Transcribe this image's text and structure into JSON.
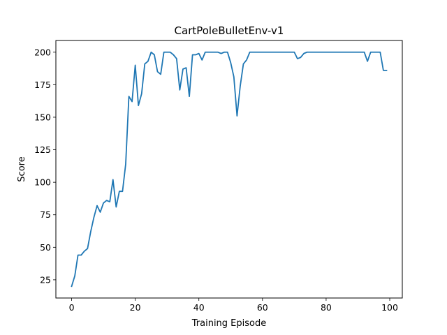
{
  "chart_data": {
    "type": "line",
    "title": "CartPoleBulletEnv-v1",
    "xlabel": "Training Episode",
    "ylabel": "Score",
    "xlim": [
      -4.95,
      103.95
    ],
    "ylim": [
      11,
      209
    ],
    "xticks": [
      0,
      20,
      40,
      60,
      80,
      100
    ],
    "yticks": [
      25,
      50,
      75,
      100,
      125,
      150,
      175,
      200
    ],
    "grid": false,
    "legend": "none",
    "series": [
      {
        "color": "#1f77b4",
        "x": [
          0,
          1,
          2,
          3,
          4,
          5,
          6,
          7,
          8,
          9,
          10,
          11,
          12,
          13,
          14,
          15,
          16,
          17,
          18,
          19,
          20,
          21,
          22,
          23,
          24,
          25,
          26,
          27,
          28,
          29,
          30,
          31,
          32,
          33,
          34,
          35,
          36,
          37,
          38,
          39,
          40,
          41,
          42,
          43,
          44,
          45,
          46,
          47,
          48,
          49,
          50,
          51,
          52,
          53,
          54,
          55,
          56,
          57,
          58,
          59,
          60,
          61,
          62,
          63,
          64,
          65,
          66,
          67,
          68,
          69,
          70,
          71,
          72,
          73,
          74,
          75,
          76,
          77,
          78,
          79,
          80,
          81,
          82,
          83,
          84,
          85,
          86,
          87,
          88,
          89,
          90,
          91,
          92,
          93,
          94,
          95,
          96,
          97,
          98,
          99
        ],
        "values": [
          20,
          28,
          44,
          44,
          47,
          49,
          62,
          73,
          82,
          77,
          84,
          86,
          85,
          102,
          81,
          93,
          93,
          114,
          166,
          162,
          190,
          159,
          168,
          191,
          193,
          200,
          198,
          185,
          183,
          200,
          200,
          200,
          198,
          195,
          171,
          187,
          188,
          166,
          198,
          198,
          199,
          194,
          200,
          200,
          200,
          200,
          200,
          199,
          200,
          200,
          192,
          181,
          151,
          174,
          191,
          194,
          200,
          200,
          200,
          200,
          200,
          200,
          200,
          200,
          200,
          200,
          200,
          200,
          200,
          200,
          200,
          195,
          196,
          199,
          200,
          200,
          200,
          200,
          200,
          200,
          200,
          200,
          200,
          200,
          200,
          200,
          200,
          200,
          200,
          200,
          200,
          200,
          200,
          193,
          200,
          200,
          200,
          200,
          186,
          186
        ]
      }
    ]
  }
}
